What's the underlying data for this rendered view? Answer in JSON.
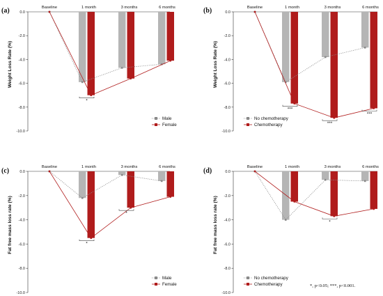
{
  "chart_data": [
    {
      "panel": "(a)",
      "type": "bar+line",
      "ylabel": "Weight Loss Rate (%)",
      "categories": [
        "Baseline",
        "1 month",
        "3 months",
        "6 months"
      ],
      "yticks": [
        "0.0",
        "-2.0",
        "-4.0",
        "-6.0",
        "-8.0",
        "-10.0"
      ],
      "ylim": [
        -10,
        0
      ],
      "series": [
        {
          "name": "Male",
          "color": "#b5b5b5",
          "line": "dotted",
          "values": [
            0,
            -5.9,
            -4.7,
            -4.4
          ]
        },
        {
          "name": "Female",
          "color": "#b01c1c",
          "line": "solid",
          "values": [
            0,
            -7.0,
            -5.6,
            -4.1
          ]
        }
      ],
      "significance": [
        {
          "category": "1 month",
          "label": "*"
        }
      ],
      "legend": "bottom-right"
    },
    {
      "panel": "(b)",
      "type": "bar+line",
      "ylabel": "Weight Loss Rate (%)",
      "categories": [
        "Baseline",
        "1 month",
        "3 months",
        "6 months"
      ],
      "yticks": [
        "0.0",
        "-2.0",
        "-4.0",
        "-6.0",
        "-8.0",
        "-10.0"
      ],
      "ylim": [
        -10,
        0
      ],
      "series": [
        {
          "name": "No chemotherapy",
          "color": "#b5b5b5",
          "line": "dotted",
          "values": [
            0,
            -5.9,
            -3.8,
            -3.0
          ]
        },
        {
          "name": "Chemotherapy",
          "color": "#b01c1c",
          "line": "solid",
          "values": [
            0,
            -7.7,
            -8.9,
            -8.1
          ]
        }
      ],
      "significance": [
        {
          "category": "1 month",
          "label": "***"
        },
        {
          "category": "3 months",
          "label": "***"
        },
        {
          "category": "6 months",
          "label": "***"
        }
      ],
      "legend": "bottom-left"
    },
    {
      "panel": "(c)",
      "type": "bar+line",
      "ylabel": "Fat free mass loss rate (%)",
      "categories": [
        "Baseline",
        "1 month",
        "3 months",
        "6 months"
      ],
      "yticks": [
        "0.0",
        "-2.0",
        "-4.0",
        "-6.0",
        "-8.0",
        "-10.0"
      ],
      "ylim": [
        -10,
        0
      ],
      "series": [
        {
          "name": "Male",
          "color": "#b5b5b5",
          "line": "dotted",
          "values": [
            0,
            -2.2,
            -0.3,
            -0.8
          ]
        },
        {
          "name": "Female",
          "color": "#b01c1c",
          "line": "solid",
          "values": [
            0,
            -5.5,
            -3.0,
            -2.1
          ]
        }
      ],
      "significance": [
        {
          "category": "1 month",
          "label": "*"
        },
        {
          "category": "3 months",
          "label": "*"
        }
      ],
      "legend": "bottom-right"
    },
    {
      "panel": "(d)",
      "type": "bar+line",
      "ylabel": "Fat free mass loss rate (%)",
      "categories": [
        "Baseline",
        "1 month",
        "3 months",
        "6 months"
      ],
      "yticks": [
        "0.0",
        "-2.0",
        "-4.0",
        "-6.0",
        "-8.0",
        "-10.0"
      ],
      "ylim": [
        -10,
        0
      ],
      "series": [
        {
          "name": "No chemotherapy",
          "color": "#b5b5b5",
          "line": "dotted",
          "values": [
            0,
            -4.0,
            -0.7,
            -0.8
          ]
        },
        {
          "name": "Chemotherapy",
          "color": "#b01c1c",
          "line": "solid",
          "values": [
            0,
            -2.5,
            -3.7,
            -3.1
          ]
        }
      ],
      "significance": [
        {
          "category": "3 months",
          "label": "*"
        }
      ],
      "legend": "bottom-left"
    }
  ],
  "footnote": "*, p<0.05; ***, p<0.001."
}
